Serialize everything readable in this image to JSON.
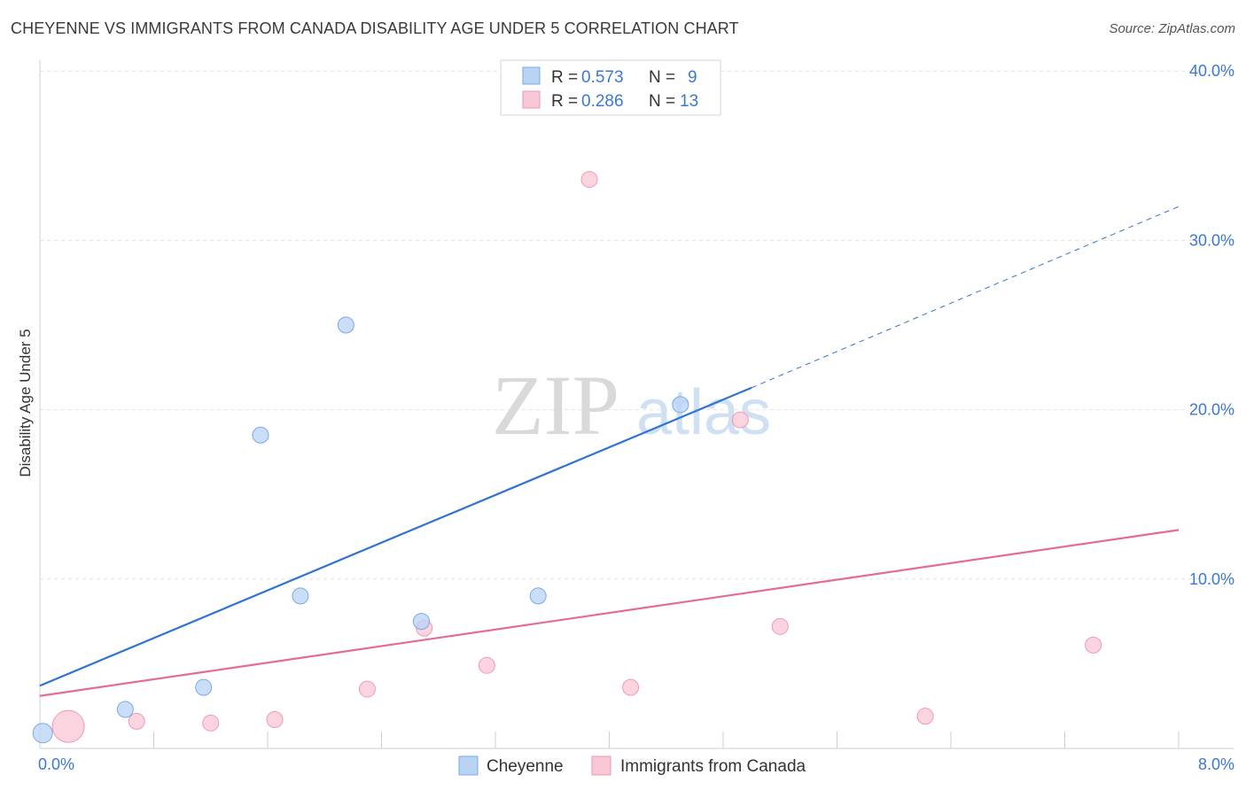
{
  "header": {
    "title": "CHEYENNE VS IMMIGRANTS FROM CANADA DISABILITY AGE UNDER 5 CORRELATION CHART",
    "source": "Source: ZipAtlas.com"
  },
  "watermark": {
    "zip": "ZIP",
    "atlas": "atlas"
  },
  "chart_data": {
    "type": "scatter",
    "title": "CHEYENNE VS IMMIGRANTS FROM CANADA DISABILITY AGE UNDER 5 CORRELATION CHART",
    "xlabel": "",
    "ylabel": "Disability Age Under 5",
    "xlim": [
      0,
      8
    ],
    "ylim": [
      0,
      40
    ],
    "x_tick_labels": [
      "0.0%",
      "8.0%"
    ],
    "y_ticks": [
      10,
      20,
      30,
      40
    ],
    "y_tick_labels": [
      "10.0%",
      "20.0%",
      "30.0%",
      "40.0%"
    ],
    "grid": true,
    "legend_position": "top-center",
    "series": [
      {
        "name": "Cheyenne",
        "color": "#b9d3f5",
        "edge_color": "#7aa8e6",
        "line_color": "#2f74d0",
        "r": "0.573",
        "n": "9",
        "points": [
          {
            "x": 0.02,
            "y": 0.9,
            "size": 11
          },
          {
            "x": 0.6,
            "y": 2.3,
            "size": 9
          },
          {
            "x": 1.15,
            "y": 3.6,
            "size": 9
          },
          {
            "x": 1.55,
            "y": 18.5,
            "size": 9
          },
          {
            "x": 1.83,
            "y": 9.0,
            "size": 9
          },
          {
            "x": 2.15,
            "y": 25.0,
            "size": 9
          },
          {
            "x": 2.68,
            "y": 7.5,
            "size": 9
          },
          {
            "x": 3.5,
            "y": 9.0,
            "size": 9
          },
          {
            "x": 4.5,
            "y": 20.3,
            "size": 9
          }
        ],
        "trend": {
          "x0": 0.0,
          "y0": 3.7,
          "x1": 5.0,
          "y1": 21.3,
          "dashed_to_x": 8.0,
          "dashed_to_y": 32.0
        }
      },
      {
        "name": "Immigrants from Canada",
        "color": "#f9c6d6",
        "edge_color": "#ee9ab4",
        "line_color": "#e46b94",
        "r": "0.286",
        "n": "13",
        "points": [
          {
            "x": 0.2,
            "y": 1.3,
            "size": 18
          },
          {
            "x": 0.68,
            "y": 1.6,
            "size": 9
          },
          {
            "x": 1.2,
            "y": 1.5,
            "size": 9
          },
          {
            "x": 1.65,
            "y": 1.7,
            "size": 9
          },
          {
            "x": 2.3,
            "y": 3.5,
            "size": 9
          },
          {
            "x": 2.7,
            "y": 7.1,
            "size": 9
          },
          {
            "x": 3.14,
            "y": 4.9,
            "size": 9
          },
          {
            "x": 3.86,
            "y": 33.6,
            "size": 9
          },
          {
            "x": 4.15,
            "y": 3.6,
            "size": 9
          },
          {
            "x": 4.92,
            "y": 19.4,
            "size": 9
          },
          {
            "x": 5.2,
            "y": 7.2,
            "size": 9
          },
          {
            "x": 6.22,
            "y": 1.9,
            "size": 9
          },
          {
            "x": 7.4,
            "y": 6.1,
            "size": 9
          }
        ],
        "trend": {
          "x0": 0.0,
          "y0": 3.1,
          "x1": 8.0,
          "y1": 12.9
        }
      }
    ]
  }
}
